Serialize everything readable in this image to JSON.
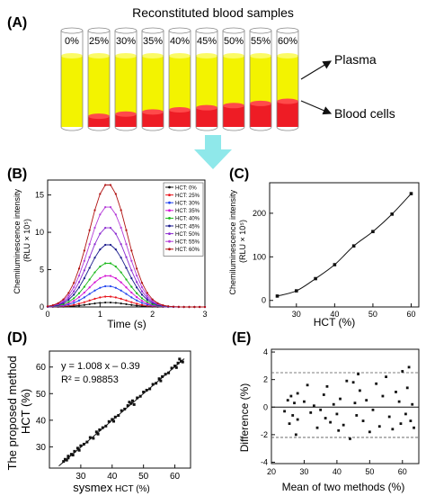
{
  "colors": {
    "plasma": "#f3f300",
    "cells": "#ee1c25",
    "arrow": "#8fe8ea",
    "line": "#111111"
  },
  "panel_a": {
    "letter": "(A)",
    "title": "Reconstituted blood samples",
    "tube_labels": [
      "0%",
      "25%",
      "30%",
      "35%",
      "40%",
      "45%",
      "50%",
      "55%",
      "60%"
    ],
    "hct_fraction": [
      0,
      0.25,
      0.3,
      0.35,
      0.4,
      0.45,
      0.5,
      0.55,
      0.6
    ],
    "plasma_label": "Plasma",
    "cells_label": "Blood cells"
  },
  "chart_data": [
    {
      "panel": "(B)",
      "type": "line",
      "xlabel": "Time (s)",
      "ylabel_lines": [
        "Chemiluminescence intensity",
        "(RLU × 10⁵)"
      ],
      "xlim": [
        0,
        3
      ],
      "ylim": [
        0,
        17
      ],
      "xticks": [
        0,
        1,
        2,
        3
      ],
      "yticks": [
        0,
        5,
        10,
        15
      ],
      "peak_time": 1.15,
      "legend_position": "top-right",
      "series": [
        {
          "name": "HCT: 0%",
          "color": "#111111",
          "peak": 0.6
        },
        {
          "name": "HCT: 25%",
          "color": "#e8141c",
          "peak": 1.4
        },
        {
          "name": "HCT: 30%",
          "color": "#2244ee",
          "peak": 2.8
        },
        {
          "name": "HCT: 35%",
          "color": "#d414d4",
          "peak": 4.2
        },
        {
          "name": "HCT: 40%",
          "color": "#18b818",
          "peak": 5.9
        },
        {
          "name": "HCT: 45%",
          "color": "#1a1a8c",
          "peak": 8.4
        },
        {
          "name": "HCT: 50%",
          "color": "#8c2ad0",
          "peak": 10.7
        },
        {
          "name": "HCT: 55%",
          "color": "#b43cd8",
          "peak": 13.5
        },
        {
          "name": "HCT: 60%",
          "color": "#b01010",
          "peak": 16.5
        }
      ]
    },
    {
      "panel": "(C)",
      "type": "scatter",
      "xlabel": "HCT (%)",
      "ylabel_lines": [
        "Chemiluminescence intensity",
        "(RLU × 10⁵)"
      ],
      "xlim": [
        23,
        62
      ],
      "ylim": [
        -15,
        270
      ],
      "xticks": [
        30,
        40,
        50,
        60
      ],
      "yticks": [
        0,
        100,
        200
      ],
      "x": [
        25,
        30,
        35,
        40,
        45,
        50,
        55,
        60
      ],
      "y": [
        10,
        22,
        50,
        82,
        125,
        158,
        198,
        245
      ]
    },
    {
      "panel": "(D)",
      "type": "scatter",
      "xlabel_main": "sysmex",
      "xlabel_rest": " HCT (%)",
      "ylabel_lines": [
        "The proposed method",
        "HCT (%)"
      ],
      "xlim": [
        20,
        65
      ],
      "ylim": [
        22,
        66
      ],
      "xticks": [
        30,
        40,
        50,
        60
      ],
      "yticks": [
        30,
        40,
        50,
        60
      ],
      "equation": "y = 1.008 x – 0.39",
      "r2": "R² = 0.98853",
      "fit": {
        "slope": 1.008,
        "intercept": -0.39,
        "x_range": [
          23,
          63
        ]
      },
      "x": [
        24.5,
        25,
        25.5,
        26,
        26,
        27,
        27.5,
        28,
        29,
        29.5,
        30,
        31,
        32,
        33,
        34,
        35,
        35.5,
        36,
        37,
        38,
        39,
        40,
        40.5,
        41,
        42,
        43,
        44,
        45,
        45.5,
        46,
        46.5,
        47,
        48,
        49,
        50,
        51,
        52,
        53,
        54,
        55,
        55.5,
        56,
        57,
        58,
        59,
        60,
        60.5,
        61,
        61.5,
        62,
        62.5
      ],
      "y": [
        24.5,
        25.3,
        25.0,
        26.5,
        25.8,
        27.2,
        26.9,
        28.3,
        29.5,
        28.7,
        30.4,
        31.0,
        31.8,
        33.5,
        33.2,
        35.6,
        34.8,
        36.4,
        37.2,
        37.8,
        39.5,
        40.3,
        39.6,
        41.2,
        41.8,
        43.6,
        44.2,
        45.5,
        46.8,
        46.3,
        47.3,
        45.9,
        48.4,
        49.0,
        50.6,
        51.3,
        51.8,
        53.5,
        53.9,
        55.6,
        54.8,
        56.4,
        57.3,
        57.8,
        59.6,
        60.4,
        59.8,
        61.5,
        63.0,
        62.2,
        61.9
      ]
    },
    {
      "panel": "(E)",
      "type": "scatter",
      "xlabel": "Mean of two methods (%)",
      "ylabel": "Difference (%)",
      "xlim": [
        20,
        65
      ],
      "ylim": [
        -4.1,
        4.2
      ],
      "xticks": [
        20,
        30,
        40,
        50,
        60
      ],
      "yticks": [
        -4,
        -2,
        0,
        2,
        4
      ],
      "mean_line": 0,
      "limit_lines": [
        2.5,
        -2.2
      ],
      "x": [
        24,
        25,
        25.5,
        26,
        26.5,
        27,
        27.5,
        28,
        28,
        30,
        31,
        32,
        33,
        34,
        35,
        36,
        36.5,
        37,
        38,
        39,
        40,
        40.5,
        41,
        42,
        43,
        44,
        45,
        45.5,
        46,
        46.5,
        47,
        48,
        49,
        50,
        51,
        52,
        53,
        54,
        55,
        56,
        57,
        58,
        59,
        59.5,
        60,
        61,
        61.5,
        62,
        62.5,
        63,
        63.5
      ],
      "y": [
        -0.3,
        0.5,
        -1.2,
        0.8,
        -0.6,
        0.3,
        -2.0,
        1.0,
        -0.9,
        0.4,
        1.6,
        -0.4,
        0.1,
        -1.5,
        -0.2,
        0.9,
        -0.8,
        1.5,
        -1.1,
        0.2,
        -0.5,
        -1.7,
        0.6,
        -1.3,
        1.9,
        -2.3,
        1.8,
        0.3,
        -0.6,
        2.4,
        1.2,
        -1.0,
        0.5,
        -1.8,
        -0.2,
        1.7,
        -1.4,
        0.8,
        2.2,
        -0.7,
        -1.6,
        1.1,
        0.4,
        -1.2,
        2.6,
        -0.5,
        1.4,
        2.9,
        -1.0,
        0.2,
        -1.5
      ]
    }
  ]
}
